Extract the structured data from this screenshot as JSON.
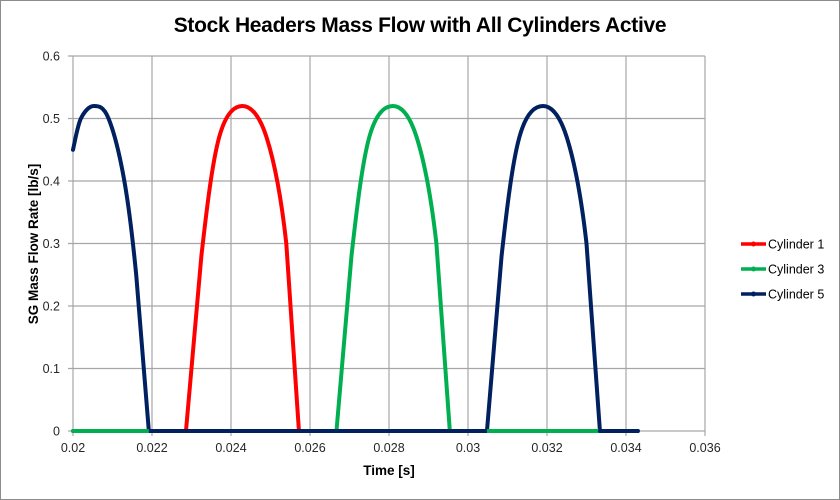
{
  "chart_data": {
    "type": "line",
    "title": "Stock Headers Mass Flow with All Cylinders Active",
    "xlabel": "Time [s]",
    "ylabel": "SG Mass Flow Rate [lb/s]",
    "xlim": [
      0.02,
      0.036
    ],
    "ylim": [
      0,
      0.6
    ],
    "xticks": [
      "0.02",
      "0.022",
      "0.024",
      "0.026",
      "0.028",
      "0.03",
      "0.032",
      "0.034",
      "0.036"
    ],
    "yticks": [
      "0",
      "0.1",
      "0.2",
      "0.3",
      "0.4",
      "0.5",
      "0.6"
    ],
    "grid": true,
    "legend_position": "right",
    "series": [
      {
        "name": "Cylinder 1",
        "color": "#ff0000",
        "points": [
          [
            0.02,
            0
          ],
          [
            0.02286,
            0
          ],
          [
            0.02325,
            0.28
          ],
          [
            0.0237,
            0.47
          ],
          [
            0.02429,
            0.52
          ],
          [
            0.0249,
            0.47
          ],
          [
            0.0254,
            0.3
          ],
          [
            0.02572,
            0
          ],
          [
            0.0343,
            0
          ]
        ]
      },
      {
        "name": "Cylinder 3",
        "color": "#00b050",
        "points": [
          [
            0.02,
            0
          ],
          [
            0.02667,
            0
          ],
          [
            0.02705,
            0.28
          ],
          [
            0.0275,
            0.47
          ],
          [
            0.0281,
            0.52
          ],
          [
            0.0287,
            0.47
          ],
          [
            0.0292,
            0.3
          ],
          [
            0.02954,
            0
          ],
          [
            0.0343,
            0
          ]
        ]
      },
      {
        "name": "Cylinder 5",
        "color": "#002060",
        "points": [
          [
            0.02,
            0.45
          ],
          [
            0.0202,
            0.5
          ],
          [
            0.02053,
            0.52
          ],
          [
            0.0209,
            0.5
          ],
          [
            0.0213,
            0.4
          ],
          [
            0.0216,
            0.25
          ],
          [
            0.02192,
            0
          ],
          [
            0.03048,
            0
          ],
          [
            0.03085,
            0.28
          ],
          [
            0.0313,
            0.47
          ],
          [
            0.0319,
            0.52
          ],
          [
            0.0325,
            0.47
          ],
          [
            0.033,
            0.3
          ],
          [
            0.03334,
            0
          ],
          [
            0.0343,
            0
          ]
        ]
      }
    ]
  },
  "legend": {
    "items": [
      {
        "label": "Cylinder 1",
        "color": "#ff0000"
      },
      {
        "label": "Cylinder 3",
        "color": "#00b050"
      },
      {
        "label": "Cylinder 5",
        "color": "#002060"
      }
    ]
  }
}
